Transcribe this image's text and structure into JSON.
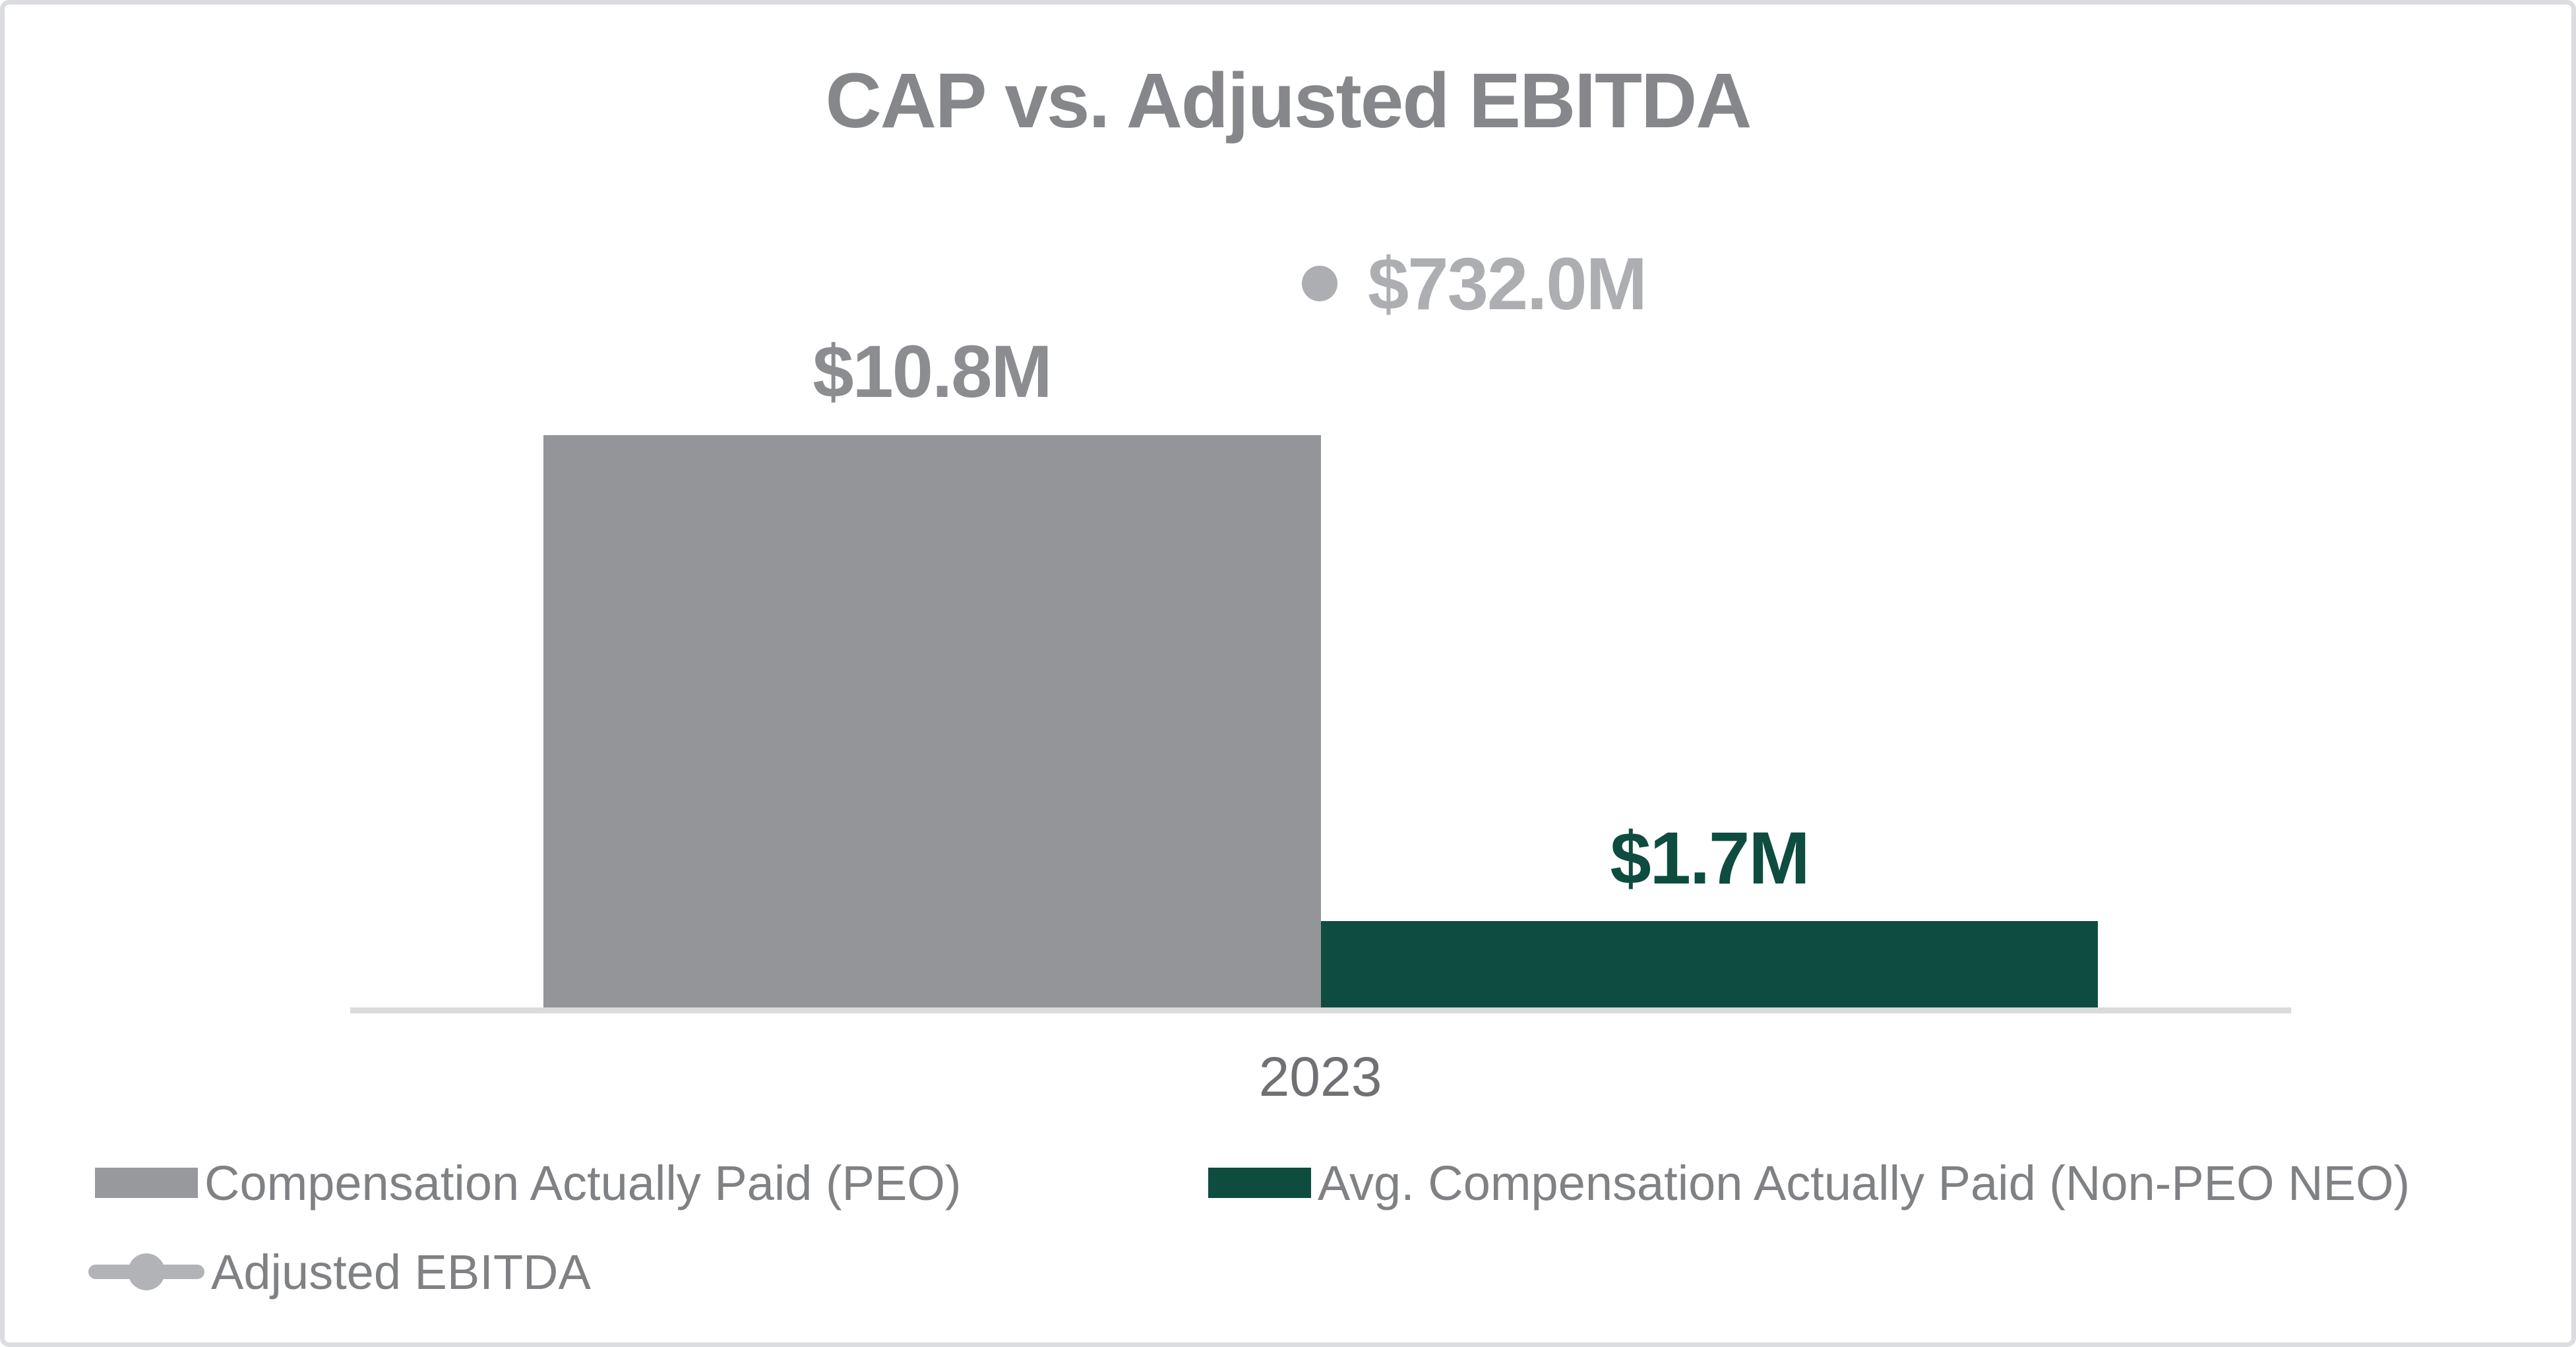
{
  "chart_data": {
    "type": "bar",
    "title": "CAP vs. Adjusted EBITDA",
    "categories": [
      "2023"
    ],
    "series": [
      {
        "name": "Compensation Actually Paid (PEO)",
        "render_as": "bar",
        "values": [
          10.8
        ],
        "value_labels": [
          "$10.8M"
        ],
        "color": "#939598"
      },
      {
        "name": "Avg. Compensation Actually Paid (Non-PEO NEO)",
        "render_as": "bar",
        "values": [
          1.7
        ],
        "value_labels": [
          "$1.7M"
        ],
        "color": "#0e4c40"
      },
      {
        "name": "Adjusted EBITDA",
        "render_as": "point",
        "values": [
          732.0
        ],
        "value_labels": [
          "$732.0M"
        ],
        "color": "#acaeb1"
      }
    ],
    "xlabel": "",
    "ylabel": "",
    "grid": false,
    "y_axis_visible": false,
    "legend_position": "bottom"
  },
  "legend": {
    "items": [
      {
        "label": "Compensation Actually Paid (PEO)",
        "swatch": "gray-rect",
        "color": "#97999c"
      },
      {
        "label": "Avg. Compensation Actually Paid (Non-PEO NEO)",
        "swatch": "green-rect",
        "color": "#0e4c40"
      },
      {
        "label": "Adjusted EBITDA",
        "swatch": "line-with-circle-marker",
        "color": "#b1b3b6"
      }
    ]
  },
  "colors": {
    "bar_gray": "#939598",
    "bar_green": "#0e4c40",
    "ebitda_gray": "#acaeb1",
    "title_text": "#85878a",
    "axis_line": "#dadbdd",
    "tick_text": "#6f7174",
    "legend_text": "#7f8184",
    "frame_border": "#dcdde0"
  }
}
